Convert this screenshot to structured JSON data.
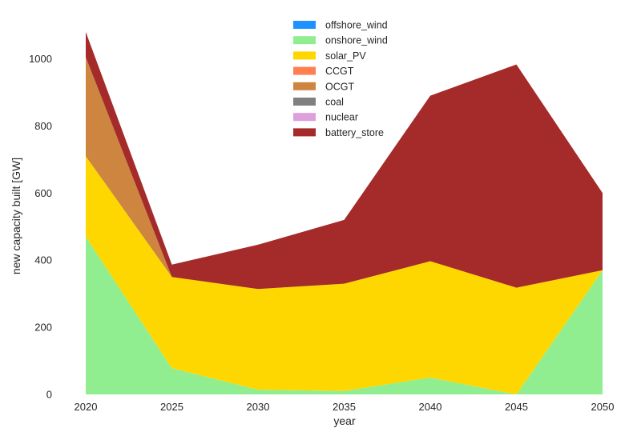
{
  "chart_data": {
    "type": "area",
    "stacked": true,
    "xlabel": "year",
    "ylabel": "new capacity built [GW]",
    "x": [
      2020,
      2025,
      2030,
      2035,
      2040,
      2045,
      2050
    ],
    "xlim": [
      2020,
      2050
    ],
    "ylim": [
      0,
      1100
    ],
    "yticks": [
      0,
      200,
      400,
      600,
      800,
      1000
    ],
    "grid": false,
    "legend_position": "top-center",
    "series": [
      {
        "name": "offshore_wind",
        "color": "#1e90ff",
        "values": [
          0,
          0,
          0,
          0,
          0,
          0,
          0
        ]
      },
      {
        "name": "onshore_wind",
        "color": "#90ee90",
        "values": [
          470,
          78,
          14,
          10,
          50,
          0,
          370
        ]
      },
      {
        "name": "solar_PV",
        "color": "#ffd700",
        "values": [
          240,
          272,
          300,
          320,
          347,
          318,
          0
        ]
      },
      {
        "name": "CCGT",
        "color": "#ff7f50",
        "values": [
          0,
          0,
          0,
          0,
          0,
          0,
          0
        ]
      },
      {
        "name": "OCGT",
        "color": "#cd853f",
        "values": [
          295,
          0,
          0,
          0,
          0,
          0,
          0
        ]
      },
      {
        "name": "coal",
        "color": "#808080",
        "values": [
          0,
          0,
          0,
          0,
          0,
          0,
          0
        ]
      },
      {
        "name": "nuclear",
        "color": "#dda0dd",
        "values": [
          0,
          0,
          0,
          0,
          0,
          0,
          0
        ]
      },
      {
        "name": "battery_store",
        "color": "#a52a2a",
        "values": [
          75,
          37,
          132,
          190,
          493,
          665,
          230
        ]
      }
    ]
  }
}
